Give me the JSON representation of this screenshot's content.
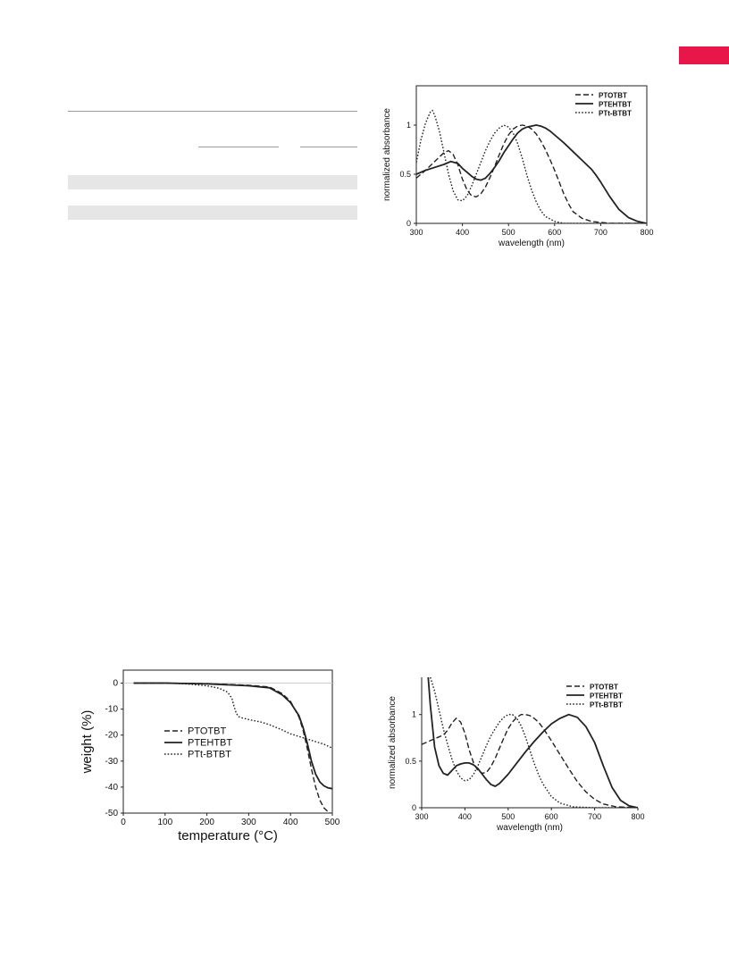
{
  "accent_color": "#e8174a",
  "chart_data": [
    {
      "type": "line",
      "name": "absorbance-top",
      "xlabel": "wavelength (nm)",
      "ylabel": "normalized absorbance",
      "xlim": [
        300,
        800
      ],
      "ylim": [
        0,
        1.4
      ],
      "xticks": [
        "300",
        "400",
        "500",
        "600",
        "700",
        "800"
      ],
      "yticks": [
        "0",
        "0.5",
        "1"
      ],
      "legend_position": "top-right",
      "series": [
        {
          "name": "PTOTBT",
          "style": "dashed",
          "x": [
            300,
            320,
            340,
            360,
            370,
            380,
            390,
            400,
            410,
            420,
            430,
            440,
            450,
            460,
            470,
            480,
            490,
            500,
            510,
            520,
            530,
            540,
            550,
            560,
            570,
            580,
            590,
            600,
            610,
            620,
            630,
            640,
            660,
            680,
            700,
            720,
            750,
            800
          ],
          "y": [
            0.46,
            0.54,
            0.63,
            0.72,
            0.74,
            0.7,
            0.6,
            0.45,
            0.34,
            0.28,
            0.27,
            0.3,
            0.37,
            0.47,
            0.58,
            0.7,
            0.81,
            0.9,
            0.96,
            0.99,
            1.0,
            0.99,
            0.96,
            0.91,
            0.84,
            0.75,
            0.65,
            0.54,
            0.42,
            0.3,
            0.2,
            0.12,
            0.05,
            0.02,
            0.01,
            0.0,
            0.0,
            0.0
          ]
        },
        {
          "name": "PTEHTBT",
          "style": "solid",
          "x": [
            300,
            320,
            340,
            360,
            375,
            390,
            400,
            410,
            420,
            430,
            440,
            450,
            460,
            470,
            480,
            490,
            500,
            510,
            520,
            530,
            540,
            550,
            560,
            570,
            580,
            590,
            600,
            620,
            640,
            660,
            680,
            690,
            700,
            720,
            740,
            760,
            780,
            800
          ],
          "y": [
            0.5,
            0.54,
            0.57,
            0.6,
            0.63,
            0.61,
            0.56,
            0.52,
            0.48,
            0.45,
            0.44,
            0.46,
            0.51,
            0.57,
            0.64,
            0.72,
            0.79,
            0.86,
            0.92,
            0.96,
            0.98,
            0.99,
            1.0,
            0.99,
            0.97,
            0.94,
            0.9,
            0.82,
            0.73,
            0.64,
            0.55,
            0.49,
            0.42,
            0.27,
            0.14,
            0.06,
            0.02,
            0.0
          ]
        },
        {
          "name": "PTt-BTBT",
          "style": "dotted",
          "x": [
            300,
            310,
            320,
            330,
            335,
            340,
            350,
            360,
            370,
            380,
            390,
            400,
            410,
            420,
            430,
            440,
            450,
            460,
            470,
            480,
            490,
            500,
            510,
            520,
            530,
            540,
            550,
            560,
            570,
            580,
            600,
            620,
            650,
            700,
            800
          ],
          "y": [
            0.62,
            0.85,
            1.02,
            1.13,
            1.15,
            1.1,
            0.94,
            0.72,
            0.5,
            0.33,
            0.24,
            0.23,
            0.28,
            0.38,
            0.5,
            0.62,
            0.74,
            0.84,
            0.92,
            0.97,
            1.0,
            0.98,
            0.92,
            0.81,
            0.66,
            0.49,
            0.34,
            0.22,
            0.13,
            0.07,
            0.02,
            0.0,
            0.0,
            0.0,
            0.0
          ]
        }
      ]
    },
    {
      "type": "line",
      "name": "tga",
      "xlabel": "temperature (°C)",
      "ylabel": "weight (%)",
      "xlim": [
        0,
        500
      ],
      "ylim": [
        -50,
        5
      ],
      "xticks": [
        "0",
        "100",
        "200",
        "300",
        "400",
        "500"
      ],
      "yticks": [
        "0",
        "-10",
        "-20",
        "-30",
        "-40",
        "-50"
      ],
      "legend_position": "center-left",
      "series": [
        {
          "name": "PTOTBT",
          "style": "dashed",
          "x": [
            25,
            100,
            200,
            300,
            350,
            380,
            400,
            420,
            430,
            440,
            450,
            460,
            470,
            480,
            490,
            495
          ],
          "y": [
            0,
            0,
            -0.2,
            -0.8,
            -1.5,
            -4,
            -7,
            -13,
            -18,
            -25,
            -33,
            -40,
            -45,
            -48,
            -49.5,
            -50
          ]
        },
        {
          "name": "PTEHTBT",
          "style": "solid",
          "x": [
            25,
            100,
            200,
            300,
            350,
            380,
            400,
            420,
            430,
            440,
            450,
            460,
            470,
            480,
            490,
            500
          ],
          "y": [
            0,
            0,
            -0.3,
            -1,
            -1.8,
            -4.5,
            -7.5,
            -12.5,
            -17,
            -23,
            -30,
            -35,
            -38,
            -39.5,
            -40.3,
            -40.6
          ]
        },
        {
          "name": "PTt-BTBT",
          "style": "dotted",
          "x": [
            25,
            100,
            150,
            200,
            230,
            250,
            260,
            265,
            270,
            275,
            280,
            300,
            330,
            350,
            380,
            400,
            420,
            440,
            460,
            480,
            500
          ],
          "y": [
            0,
            0,
            -0.3,
            -1,
            -2,
            -3.5,
            -6,
            -9,
            -11.5,
            -12.8,
            -13.2,
            -14,
            -15,
            -16,
            -18,
            -19.5,
            -20.5,
            -21.5,
            -22.5,
            -23.5,
            -25
          ]
        }
      ]
    },
    {
      "type": "line",
      "name": "absorbance-bottom",
      "xlabel": "wavelength (nm)",
      "ylabel": "normalized absorbance",
      "xlim": [
        300,
        800
      ],
      "ylim": [
        0,
        1.4
      ],
      "xticks": [
        "300",
        "400",
        "500",
        "600",
        "700",
        "800"
      ],
      "yticks": [
        "0",
        "0.5",
        "1"
      ],
      "legend_position": "top-right",
      "series": [
        {
          "name": "PTOTBT",
          "style": "dashed",
          "x": [
            300,
            320,
            340,
            350,
            360,
            370,
            380,
            390,
            400,
            410,
            420,
            430,
            440,
            450,
            460,
            470,
            480,
            490,
            500,
            510,
            520,
            530,
            540,
            550,
            560,
            570,
            580,
            600,
            620,
            640,
            660,
            680,
            700,
            720,
            750,
            800
          ],
          "y": [
            0.68,
            0.72,
            0.76,
            0.78,
            0.83,
            0.91,
            0.96,
            0.92,
            0.8,
            0.62,
            0.48,
            0.4,
            0.37,
            0.38,
            0.44,
            0.53,
            0.64,
            0.75,
            0.85,
            0.92,
            0.97,
            1.0,
            1.0,
            0.99,
            0.96,
            0.92,
            0.86,
            0.72,
            0.57,
            0.42,
            0.28,
            0.17,
            0.09,
            0.04,
            0.01,
            0.0
          ]
        },
        {
          "name": "PTEHTBT",
          "style": "solid",
          "x": [
            315,
            320,
            330,
            340,
            350,
            360,
            370,
            380,
            390,
            400,
            410,
            420,
            430,
            440,
            450,
            460,
            470,
            480,
            500,
            520,
            540,
            560,
            580,
            600,
            620,
            640,
            660,
            680,
            700,
            720,
            740,
            760,
            780,
            800
          ],
          "y": [
            1.4,
            1.1,
            0.65,
            0.45,
            0.37,
            0.35,
            0.4,
            0.45,
            0.47,
            0.48,
            0.48,
            0.46,
            0.42,
            0.36,
            0.3,
            0.25,
            0.23,
            0.26,
            0.36,
            0.48,
            0.6,
            0.71,
            0.81,
            0.9,
            0.96,
            1.0,
            0.97,
            0.87,
            0.7,
            0.45,
            0.22,
            0.08,
            0.02,
            0.0
          ]
        },
        {
          "name": "PTt-BTBT",
          "style": "dotted",
          "x": [
            320,
            330,
            340,
            350,
            360,
            370,
            380,
            390,
            400,
            410,
            420,
            430,
            440,
            450,
            460,
            470,
            480,
            490,
            500,
            510,
            520,
            530,
            540,
            550,
            560,
            570,
            580,
            600,
            620,
            650,
            700,
            800
          ],
          "y": [
            1.4,
            1.25,
            1.05,
            0.85,
            0.68,
            0.52,
            0.4,
            0.32,
            0.29,
            0.3,
            0.36,
            0.45,
            0.56,
            0.67,
            0.77,
            0.85,
            0.92,
            0.97,
            1.0,
            1.0,
            0.96,
            0.88,
            0.76,
            0.62,
            0.48,
            0.36,
            0.26,
            0.12,
            0.05,
            0.01,
            0.0,
            0.0
          ]
        }
      ]
    }
  ]
}
